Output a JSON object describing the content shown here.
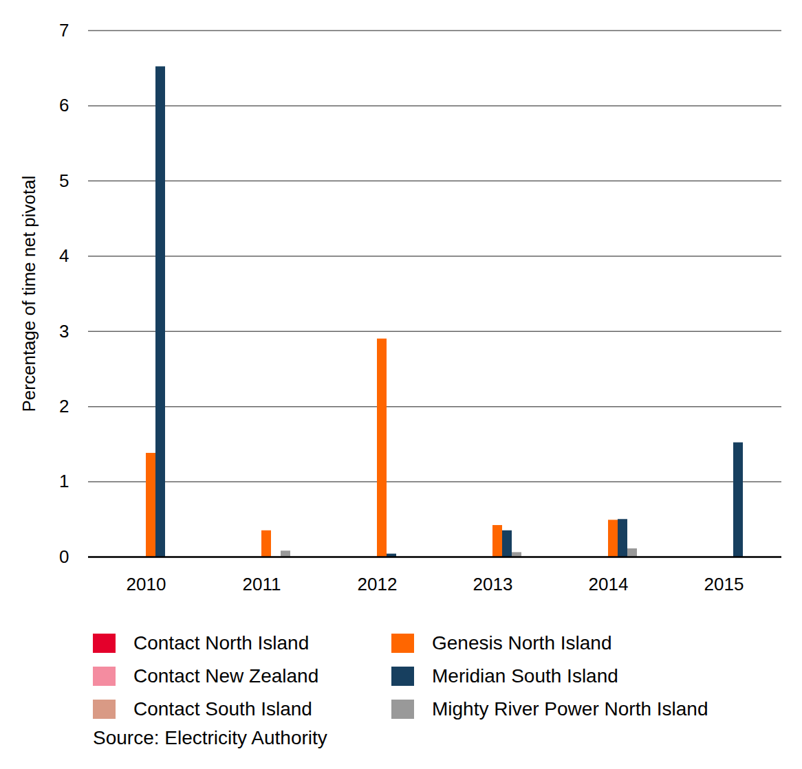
{
  "chart_data": {
    "type": "bar",
    "y_label": "Percentage of time net pivotal",
    "caption": "Source: Electricity Authority",
    "categories": [
      "2010",
      "2011",
      "2012",
      "2013",
      "2014",
      "2015"
    ],
    "series": [
      {
        "name": "Contact North Island",
        "color": "#e4002b",
        "values": [
          0,
          0,
          0,
          0,
          0,
          0
        ]
      },
      {
        "name": "Contact New Zealand",
        "color": "#f48ca0",
        "values": [
          0,
          0,
          0,
          0,
          0,
          0
        ]
      },
      {
        "name": "Contact South Island",
        "color": "#d99a85",
        "values": [
          0,
          0,
          0,
          0,
          0,
          0
        ]
      },
      {
        "name": "Genesis North Island",
        "color": "#ff6600",
        "values": [
          1.38,
          0.35,
          2.9,
          0.42,
          0.49,
          0
        ]
      },
      {
        "name": "Meridian South Island",
        "color": "#173f5f",
        "values": [
          6.52,
          0,
          0.04,
          0.35,
          0.5,
          1.52
        ]
      },
      {
        "name": "Mighty River Power North Island",
        "color": "#999999",
        "values": [
          0,
          0.08,
          0,
          0.06,
          0.11,
          0
        ]
      }
    ],
    "ylim": [
      0,
      7
    ],
    "yticks": [
      0,
      1,
      2,
      3,
      4,
      5,
      6,
      7
    ],
    "grid": true,
    "legend": "bottom"
  }
}
